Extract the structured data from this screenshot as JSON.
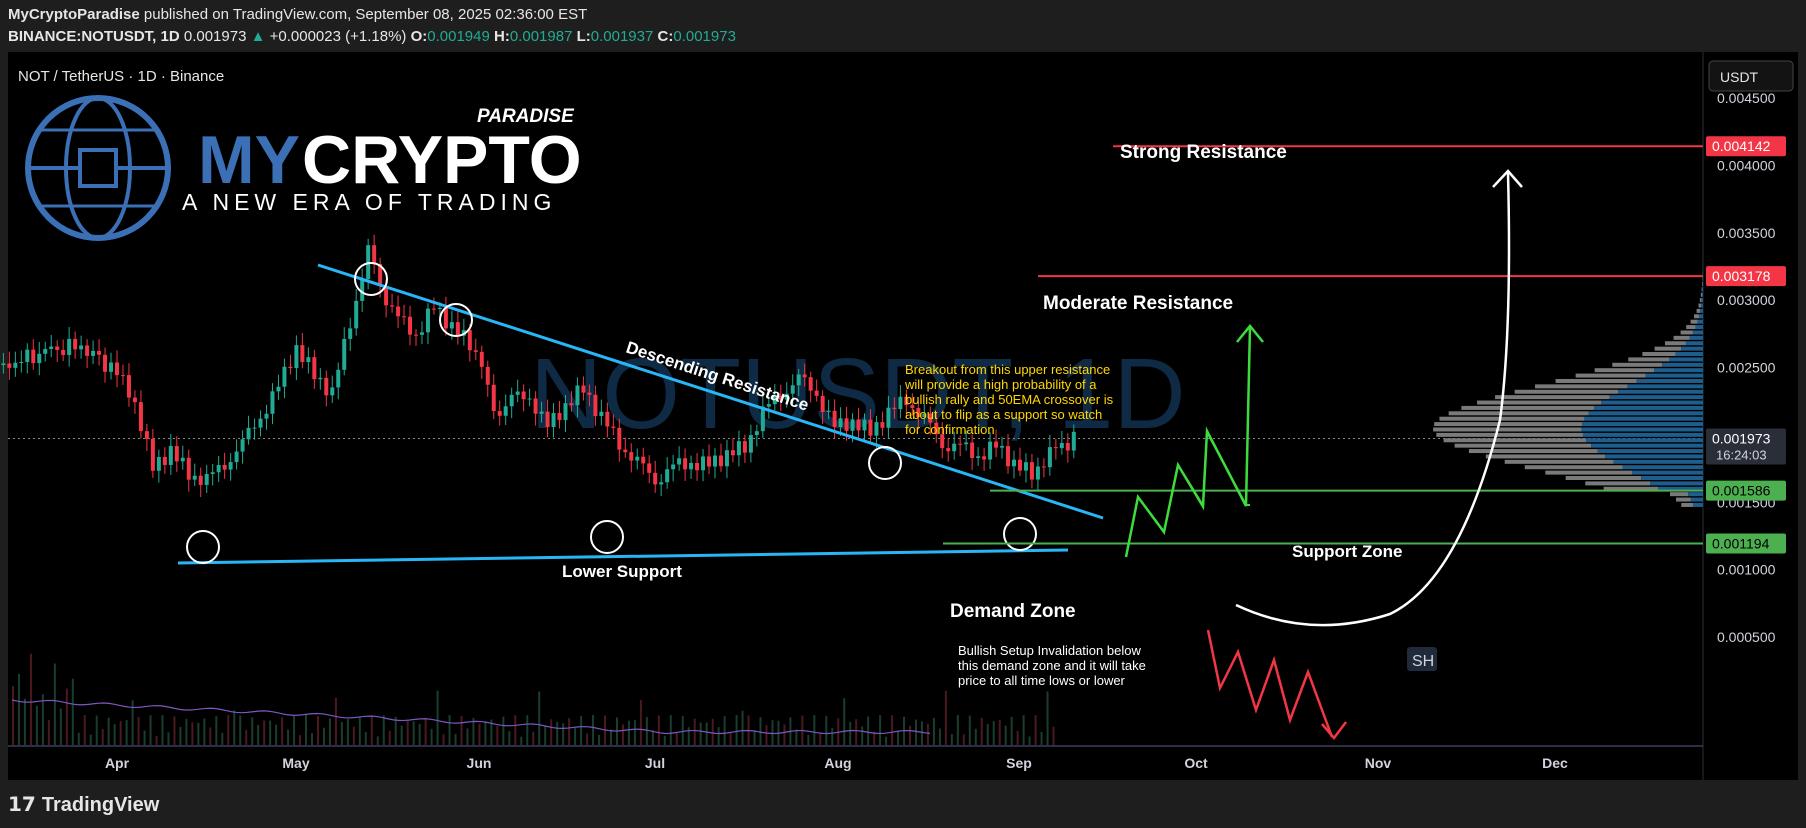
{
  "header": {
    "author": "MyCryptoParadise",
    "published": "published on TradingView.com, September 08, 2025 02:36:00 EST",
    "symbol": "BINANCE:NOTUSDT, 1D",
    "last": "0.001973",
    "change": "+0.000023 (+1.18%)",
    "o_label": "O:",
    "o": "0.001949",
    "h_label": "H:",
    "h": "0.001987",
    "l_label": "L:",
    "l": "0.001937",
    "c_label": "C:",
    "c": "0.001973"
  },
  "legend_title": "NOT / TetherUS · 1D · Binance",
  "currency_button": "USDT",
  "watermark": "NOTUSDT, 1D",
  "logo": {
    "small": "PARADISE",
    "big_a": "MY",
    "big_b": "CRYPTO",
    "tagline": "A NEW ERA OF TRADING"
  },
  "footer": "TradingView",
  "sh_badge": "SH",
  "countdown": "16:24:03",
  "colors": {
    "up": "#22ab94",
    "down": "#f23645",
    "line": "#29b6f6",
    "resistance": "#f23645",
    "support": "#4caf50",
    "bg": "#000000"
  },
  "chart_data": {
    "type": "candlestick",
    "x_tick_labels": [
      "Apr",
      "May",
      "Jun",
      "Jul",
      "Aug",
      "Sep",
      "Oct",
      "Nov",
      "Dec"
    ],
    "y_tick_labels": [
      "0.004500",
      "0.004000",
      "0.003500",
      "0.003000",
      "0.002500",
      "0.001500",
      "0.001000",
      "0.000500"
    ],
    "ylim": [
      0.00045,
      0.00475
    ],
    "price_tags": [
      {
        "label": "0.004142",
        "value": 0.004142,
        "color": "#f23645"
      },
      {
        "label": "0.003178",
        "value": 0.003178,
        "color": "#f23645"
      },
      {
        "label": "0.001973",
        "value": 0.001973,
        "color": "#d1d4dc"
      },
      {
        "label": "0.001586",
        "value": 0.001586,
        "color": "#4caf50"
      },
      {
        "label": "0.001194",
        "value": 0.001194,
        "color": "#4caf50"
      }
    ],
    "annotations": {
      "strong_resistance": "Strong Resistance",
      "moderate_resistance": "Moderate Resistance",
      "descending_resistance": "Descending Resistance",
      "lower_support": "Lower Support",
      "support_zone": "Support Zone",
      "demand_zone": "Demand Zone",
      "breakout_note": [
        "Breakout from this upper resistance",
        "will provide a high probability of a",
        "bullish rally and 50EMA crossover is",
        "about to flip as a support so watch",
        "for confirmation"
      ],
      "invalidation_note": [
        "Bullish Setup Invalidation below",
        "this demand zone and it will take",
        "price to all time lows or lower"
      ]
    },
    "series": [
      {
        "name": "NOTUSDT",
        "points": [
          {
            "t": "Mar 08",
            "p": 0.00235
          },
          {
            "t": "Mar 14",
            "p": 0.00255
          },
          {
            "t": "Mar 20",
            "p": 0.0026
          },
          {
            "t": "Mar 26",
            "p": 0.00268
          },
          {
            "t": "Apr 01",
            "p": 0.00245
          },
          {
            "t": "Apr 04",
            "p": 0.00225
          },
          {
            "t": "Apr 07",
            "p": 0.00175
          },
          {
            "t": "Apr 10",
            "p": 0.00188
          },
          {
            "t": "Apr 13",
            "p": 0.00172
          },
          {
            "t": "Apr 16",
            "p": 0.00165
          },
          {
            "t": "Apr 19",
            "p": 0.0018
          },
          {
            "t": "Apr 22",
            "p": 0.00192
          },
          {
            "t": "Apr 25",
            "p": 0.00215
          },
          {
            "t": "Apr 28",
            "p": 0.00235
          },
          {
            "t": "May 01",
            "p": 0.00265
          },
          {
            "t": "May 04",
            "p": 0.00245
          },
          {
            "t": "May 07",
            "p": 0.0023
          },
          {
            "t": "May 10",
            "p": 0.00285
          },
          {
            "t": "May 13",
            "p": 0.00335
          },
          {
            "t": "May 15",
            "p": 0.0031
          },
          {
            "t": "May 18",
            "p": 0.00285
          },
          {
            "t": "May 21",
            "p": 0.00275
          },
          {
            "t": "May 24",
            "p": 0.00295
          },
          {
            "t": "May 27",
            "p": 0.0028
          },
          {
            "t": "May 30",
            "p": 0.00268
          },
          {
            "t": "Jun 01",
            "p": 0.00255
          },
          {
            "t": "Jun 03",
            "p": 0.00215
          },
          {
            "t": "Jun 06",
            "p": 0.00225
          },
          {
            "t": "Jun 09",
            "p": 0.0023
          },
          {
            "t": "Jun 12",
            "p": 0.00205
          },
          {
            "t": "Jun 15",
            "p": 0.00222
          },
          {
            "t": "Jun 18",
            "p": 0.00235
          },
          {
            "t": "Jun 21",
            "p": 0.00212
          },
          {
            "t": "Jun 24",
            "p": 0.00195
          },
          {
            "t": "Jun 27",
            "p": 0.00178
          },
          {
            "t": "Jun 30",
            "p": 0.00168
          },
          {
            "t": "Jul 03",
            "p": 0.00175
          },
          {
            "t": "Jul 06",
            "p": 0.0018
          },
          {
            "t": "Jul 09",
            "p": 0.00178
          },
          {
            "t": "Jul 12",
            "p": 0.00185
          },
          {
            "t": "Jul 15",
            "p": 0.00192
          },
          {
            "t": "Jul 18",
            "p": 0.00215
          },
          {
            "t": "Jul 21",
            "p": 0.00232
          },
          {
            "t": "Jul 24",
            "p": 0.0024
          },
          {
            "t": "Jul 27",
            "p": 0.00232
          },
          {
            "t": "Jul 30",
            "p": 0.00205
          },
          {
            "t": "Aug 02",
            "p": 0.0021
          },
          {
            "t": "Aug 05",
            "p": 0.00203
          },
          {
            "t": "Aug 08",
            "p": 0.00215
          },
          {
            "t": "Aug 11",
            "p": 0.00228
          },
          {
            "t": "Aug 14",
            "p": 0.0021
          },
          {
            "t": "Aug 17",
            "p": 0.00195
          },
          {
            "t": "Aug 20",
            "p": 0.0019
          },
          {
            "t": "Aug 23",
            "p": 0.00185
          },
          {
            "t": "Aug 26",
            "p": 0.00192
          },
          {
            "t": "Aug 29",
            "p": 0.00178
          },
          {
            "t": "Sep 01",
            "p": 0.00172
          },
          {
            "t": "Sep 04",
            "p": 0.00185
          },
          {
            "t": "Sep 08",
            "p": 0.001973
          }
        ]
      }
    ]
  }
}
